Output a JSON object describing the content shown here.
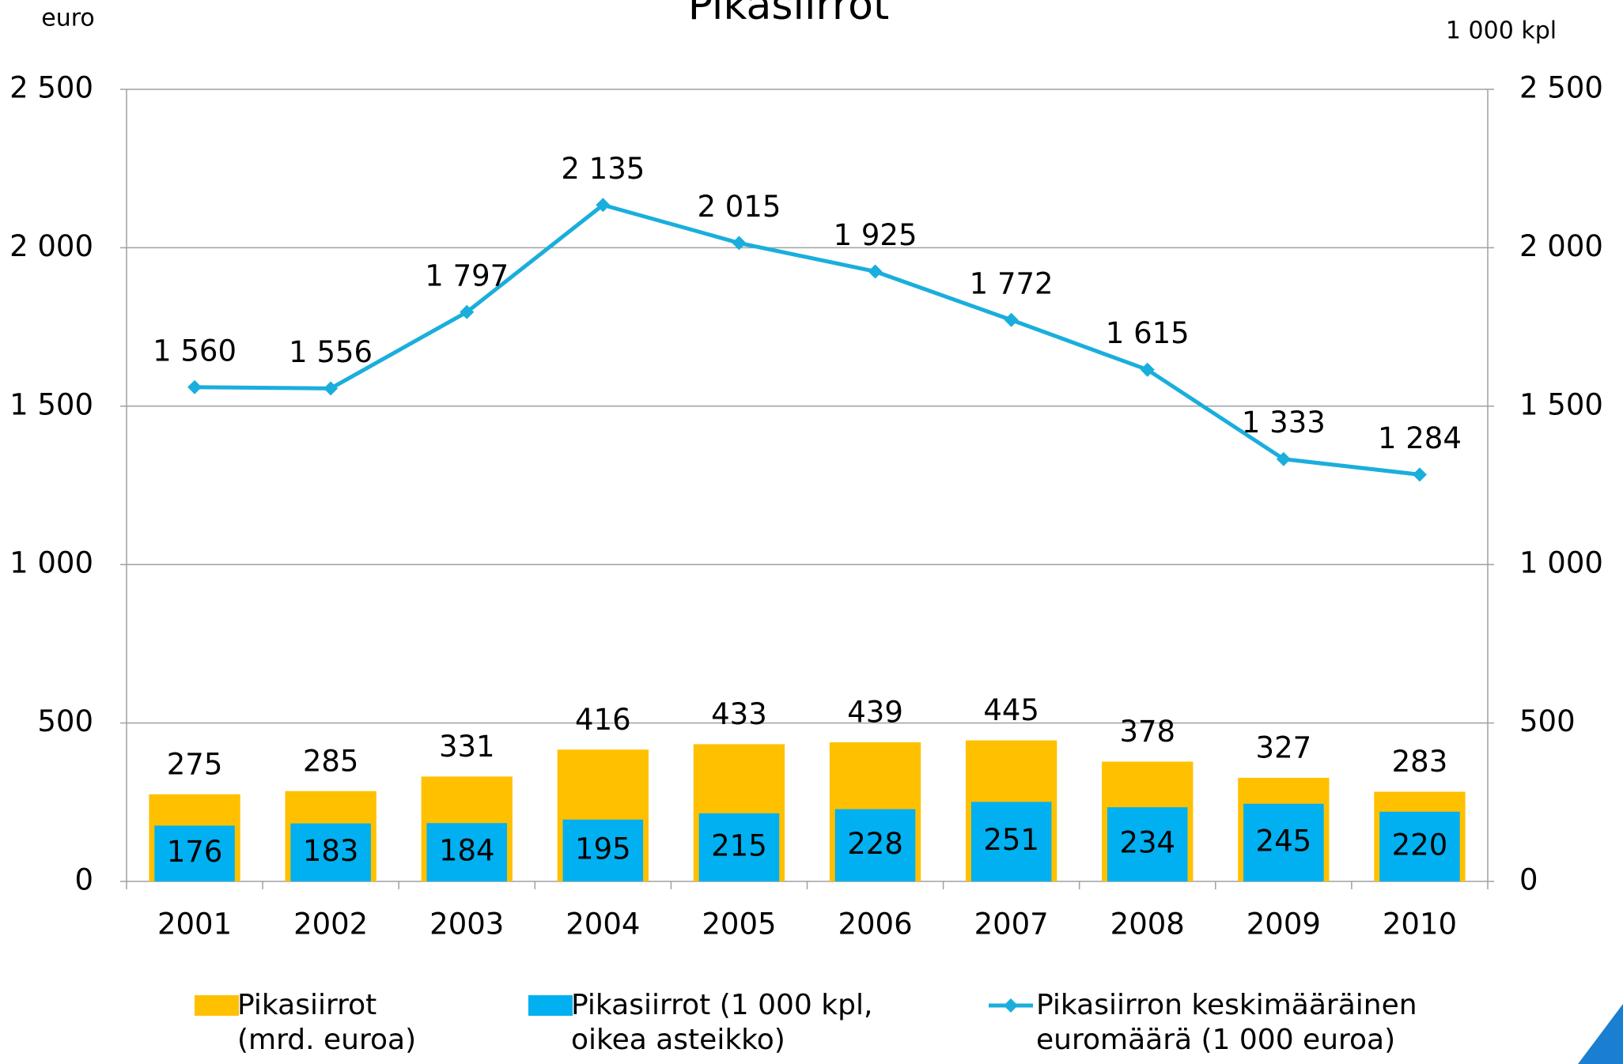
{
  "chart_data": {
    "type": "bar",
    "title": "Pikasiirrot",
    "y_label": "euro",
    "y2_label": "1 000 kpl",
    "categories": [
      "2001",
      "2002",
      "2003",
      "2004",
      "2005",
      "2006",
      "2007",
      "2008",
      "2009",
      "2010"
    ],
    "series": [
      {
        "name": "Pikasiirrot (mrd. euroa)",
        "type": "bar",
        "color": "#ffc000",
        "values": [
          275,
          285,
          331,
          416,
          433,
          439,
          445,
          378,
          327,
          283
        ]
      },
      {
        "name": "Pikasiirrot (1 000 kpl, oikea asteikko)",
        "type": "bar",
        "axis": "y2",
        "color": "#00b0f0",
        "values": [
          176,
          183,
          184,
          195,
          215,
          228,
          251,
          234,
          245,
          220
        ]
      },
      {
        "name": "Pikasiirron keskimääräinen euromäärä (1 000 euroa)",
        "type": "line",
        "color": "#1aaedc",
        "values": [
          1560,
          1556,
          1797,
          2135,
          2015,
          1925,
          1772,
          1615,
          1333,
          1284
        ],
        "value_labels": [
          "1 560",
          "1 556",
          "1 797",
          "2 135",
          "2 015",
          "1 925",
          "1 772",
          "1 615",
          "1 333",
          "1 284"
        ]
      }
    ],
    "ylim": [
      0,
      2500
    ],
    "yticks": [
      0,
      500,
      {
        "value": 1000,
        "label": "1 000"
      },
      {
        "value": 1500,
        "label": "1 500"
      },
      {
        "value": 2000,
        "label": "2 000"
      },
      {
        "value": 2500,
        "label": "2 500"
      }
    ],
    "y2lim": [
      0,
      2500
    ],
    "y2ticks": [
      0,
      500,
      {
        "value": 1000,
        "label": "1 000"
      },
      {
        "value": 1500,
        "label": "1 500"
      },
      {
        "value": 2000,
        "label": "2 000"
      },
      {
        "value": 2500,
        "label": "2 500"
      }
    ],
    "grid": true,
    "legend": "bottom"
  }
}
